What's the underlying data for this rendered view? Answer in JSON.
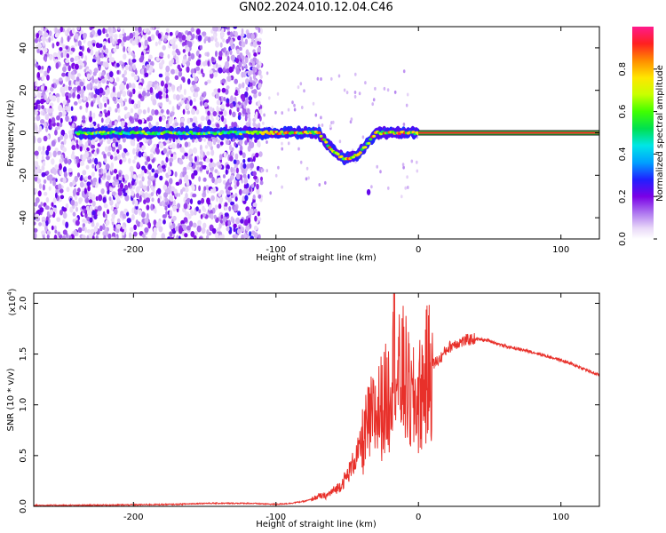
{
  "page": {
    "title": "GN02.2024.010.12.04.C46"
  },
  "chart_data": [
    {
      "type": "heatmap",
      "title": "GN02.2024.010.12.04.C46",
      "xlabel": "Height of straight line (km)",
      "ylabel": "Frequency (Hz)",
      "xlim": [
        -270,
        127
      ],
      "ylim": [
        -50,
        50
      ],
      "x_ticks": [
        -200,
        -100,
        0,
        100
      ],
      "x_tick_labels": [
        "-200",
        "-100",
        "0",
        "100"
      ],
      "y_ticks": [
        -40,
        -20,
        0,
        20,
        40
      ],
      "y_tick_labels": [
        "-40",
        "-20",
        "0",
        "20",
        "40"
      ],
      "colorbar": {
        "label": "Normalized spectral amplitude",
        "range": [
          0,
          1
        ],
        "ticks": [
          0.0,
          0.2,
          0.4,
          0.6,
          0.8
        ],
        "tick_labels": [
          "0.0",
          "0.2",
          "0.4",
          "0.6",
          "0.8"
        ],
        "colormap": "rainbow (violet to red)"
      },
      "features": {
        "scattered_noise_region_km": [
          -270,
          -110
        ],
        "carrier_line_frequency_hz": 0,
        "carrier_solid_from_km": 0,
        "doppler_deviation_region_km": [
          -70,
          -30
        ],
        "doppler_minimum_hz": -12,
        "isolated_blob": {
          "x_km": -35,
          "freq_hz": -28
        }
      },
      "grid": false
    },
    {
      "type": "line",
      "xlabel": "Height of straight line (km)",
      "ylabel": "SNR (10 * v/v)",
      "y_multiplier_label": "(x10^4)",
      "xlim": [
        -270,
        127
      ],
      "ylim": [
        0,
        2.1
      ],
      "x_ticks": [
        -200,
        -100,
        0,
        100
      ],
      "x_tick_labels": [
        "-200",
        "-100",
        "0",
        "100"
      ],
      "y_ticks": [
        0.0,
        0.5,
        1.0,
        1.5,
        2.0
      ],
      "y_tick_labels": [
        "0.0",
        "0.5",
        "1.0",
        "1.5",
        "2.0"
      ],
      "series": [
        {
          "color": "#e8302a",
          "x": [
            -270,
            -240,
            -200,
            -170,
            -150,
            -120,
            -100,
            -90,
            -80,
            -75,
            -70,
            -65,
            -60,
            -55,
            -50,
            -45,
            -40,
            -35,
            -30,
            -25,
            -20,
            -17,
            -15,
            -10,
            -5,
            0,
            5,
            10,
            15,
            20,
            25,
            30,
            35,
            40,
            50,
            60,
            70,
            80,
            90,
            100,
            110,
            120,
            127
          ],
          "y": [
            0.01,
            0.01,
            0.015,
            0.02,
            0.03,
            0.03,
            0.02,
            0.03,
            0.05,
            0.07,
            0.1,
            0.1,
            0.15,
            0.2,
            0.3,
            0.45,
            0.6,
            0.8,
            0.9,
            1.0,
            1.1,
            2.05,
            1.2,
            1.3,
            1.0,
            1.05,
            1.25,
            1.4,
            1.45,
            1.55,
            1.6,
            1.62,
            1.64,
            1.65,
            1.63,
            1.58,
            1.55,
            1.52,
            1.48,
            1.44,
            1.39,
            1.33,
            1.29
          ]
        }
      ],
      "annotations": [
        "2.05 spike near x=-17"
      ],
      "grid": false
    }
  ]
}
